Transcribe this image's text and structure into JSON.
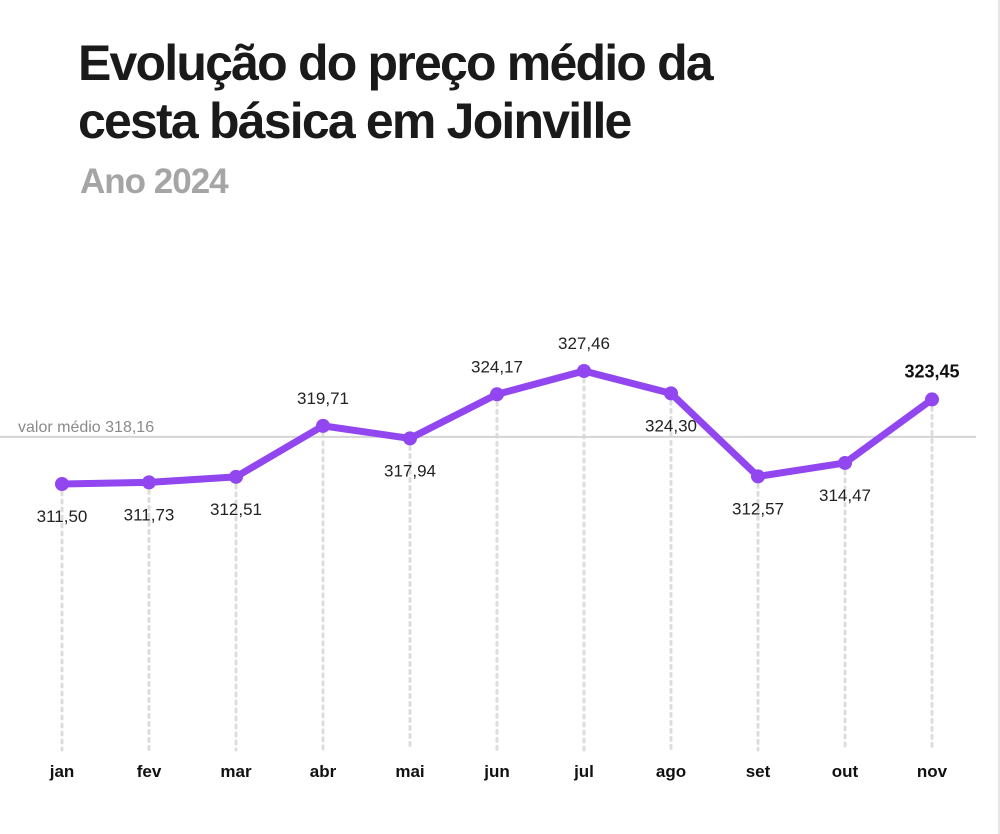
{
  "title": "Evolução do preço médio da cesta básica em Joinville",
  "subtitle": "Ano 2024",
  "colors": {
    "line": "#9146f0",
    "reference_line": "#d5d5d5",
    "grid": "#dddddd"
  },
  "chart_data": {
    "type": "line",
    "categories": [
      "jan",
      "fev",
      "mar",
      "abr",
      "mai",
      "jun",
      "jul",
      "ago",
      "set",
      "out",
      "nov"
    ],
    "values": [
      311.5,
      311.73,
      312.51,
      319.71,
      317.94,
      324.17,
      327.46,
      324.3,
      312.57,
      314.47,
      323.45
    ],
    "value_labels": [
      "311,50",
      "311,73",
      "312,51",
      "319,71",
      "317,94",
      "324,17",
      "327,46",
      "324,30",
      "312,57",
      "314,47",
      "323,45"
    ],
    "reference": {
      "value": 318.16,
      "label": "valor médio 318,16"
    },
    "highlight_last": true,
    "grid": "vertical-dotted"
  }
}
